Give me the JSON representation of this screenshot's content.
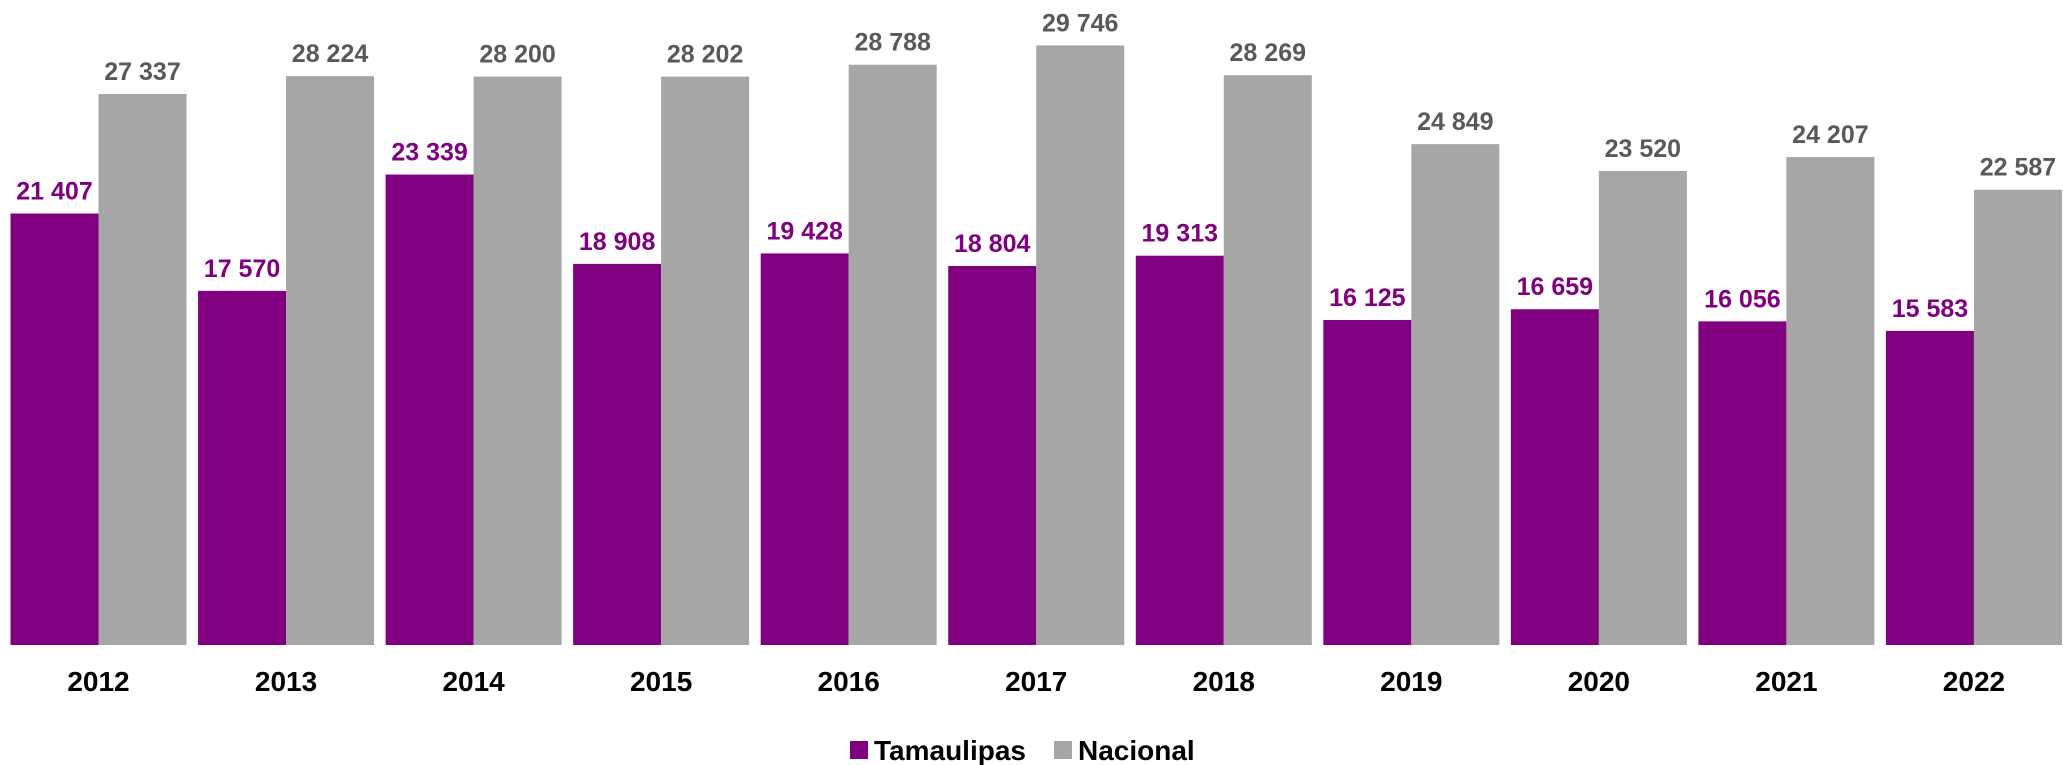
{
  "chart_data": {
    "type": "bar",
    "categories": [
      "2012",
      "2013",
      "2014",
      "2015",
      "2016",
      "2017",
      "2018",
      "2019",
      "2020",
      "2021",
      "2022"
    ],
    "series": [
      {
        "name": "Tamaulipas",
        "color": "#800080",
        "label_color": "#800080",
        "values": [
          21407,
          17570,
          23339,
          18908,
          19428,
          18804,
          19313,
          16125,
          16659,
          16056,
          15583
        ],
        "value_labels": [
          "21 407",
          "17 570",
          "23 339",
          "18 908",
          "19 428",
          "18 804",
          "19 313",
          "16 125",
          "16 659",
          "16 056",
          "15 583"
        ]
      },
      {
        "name": "Nacional",
        "color": "#a6a6a6",
        "label_color": "#595959",
        "values": [
          27337,
          28224,
          28200,
          28202,
          28788,
          29746,
          28269,
          24849,
          23520,
          24207,
          22587
        ],
        "value_labels": [
          "27 337",
          "28 224",
          "28 200",
          "28 202",
          "28 788",
          "29 746",
          "28 269",
          "24 849",
          "23 520",
          "24 207",
          "22 587"
        ]
      }
    ],
    "ylim": [
      0,
      32000
    ],
    "legend": "bottom"
  }
}
